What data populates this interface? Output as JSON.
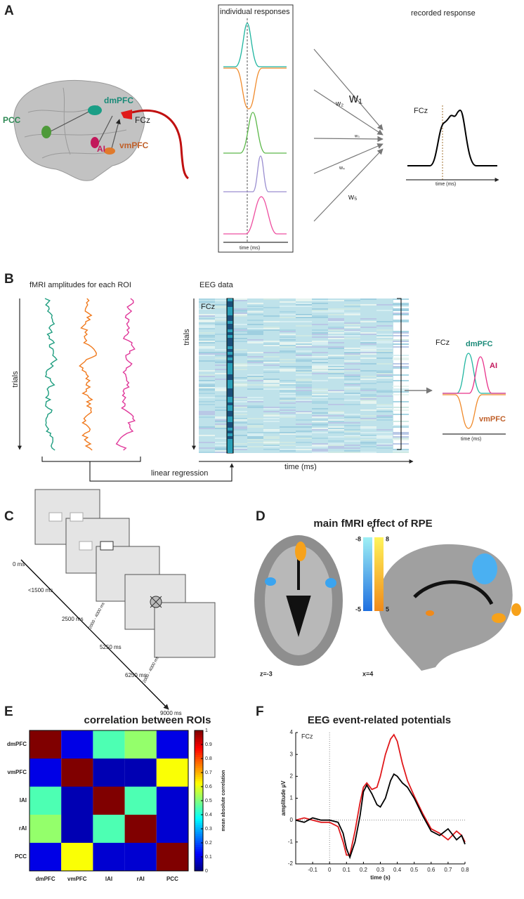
{
  "panel_a": {
    "label": "A",
    "regions": {
      "pcc": "PCC",
      "dmpfc": "dmPFC",
      "ai": "AI",
      "vmpfc": "vmPFC"
    },
    "electrode": "FCz",
    "individual_responses": "individual responses",
    "individual_time": "time (ms)",
    "weights": [
      "w₁",
      "w₂",
      "w₃",
      "w₄",
      "w₅"
    ],
    "recorded_response": "recorded response",
    "recorded_electrode": "FCz",
    "recorded_time": "time (ms)"
  },
  "panel_b": {
    "label": "B",
    "fmri_title": "fMRI amplitudes for each ROI",
    "fmri_trials": "trials",
    "eeg_title": "EEG data",
    "eeg_trials": "trials",
    "eeg_electrode": "FCz",
    "eeg_time": "time (ms)",
    "regression": "linear regression",
    "result_electrode": "FCz",
    "result_dmpfc": "dmPFC",
    "result_ai": "AI",
    "result_vmpfc": "vmPFC",
    "result_time": "time (ms)"
  },
  "panel_c": {
    "label": "C",
    "times": [
      "0 ms",
      "<1500 ms",
      "2500 ms",
      "5250 ms",
      "6250 ms",
      "9000 ms"
    ],
    "jitters": [
      "2000 - 4000 ms",
      "2000 - 4000 ms"
    ]
  },
  "panel_d": {
    "label": "D",
    "title": "main fMRI effect of RPE",
    "colorbar_label": "t",
    "negative": [
      "-8",
      "-5"
    ],
    "positive": [
      "8",
      "5"
    ],
    "slices": [
      "z=-3",
      "x=4"
    ]
  },
  "panel_e_label": "E",
  "panel_f_label": "F",
  "chart_data": [
    {
      "type": "heatmap",
      "title": "correlation between ROIs",
      "colormap": "jet",
      "categories": [
        "dmPFC",
        "vmPFC",
        "lAI",
        "rAI",
        "PCC"
      ],
      "values": [
        [
          1,
          0.1,
          0.45,
          0.52,
          0.1
        ],
        [
          0.1,
          1,
          0.05,
          0.05,
          0.62
        ],
        [
          0.45,
          0.05,
          1,
          0.45,
          0.08
        ],
        [
          0.52,
          0.05,
          0.45,
          1,
          0.08
        ],
        [
          0.1,
          0.62,
          0.08,
          0.08,
          1
        ]
      ],
      "colorbar_label": "mean absolute correlation",
      "clim": [
        0,
        1
      ],
      "cticks": [
        0,
        0.1,
        0.2,
        0.3,
        0.4,
        0.5,
        0.6,
        0.7,
        0.8,
        0.9,
        1
      ]
    },
    {
      "type": "line",
      "title": "EEG event-related potentials",
      "annotation": "FCz",
      "xlabel": "time (s)",
      "ylabel": "amplitude µV",
      "x": [
        -0.2,
        -0.15,
        -0.1,
        -0.05,
        0,
        0.05,
        0.08,
        0.1,
        0.12,
        0.15,
        0.18,
        0.2,
        0.22,
        0.25,
        0.28,
        0.3,
        0.33,
        0.36,
        0.38,
        0.4,
        0.43,
        0.46,
        0.5,
        0.55,
        0.6,
        0.65,
        0.7,
        0.75,
        0.78,
        0.8
      ],
      "series": [
        {
          "color": "#e0181b",
          "values": [
            0,
            0.1,
            0,
            -0.1,
            -0.1,
            -0.3,
            -1.0,
            -1.6,
            -1.6,
            -0.5,
            0.8,
            1.5,
            1.7,
            1.4,
            1.5,
            2.0,
            3.0,
            3.7,
            3.9,
            3.6,
            2.6,
            1.8,
            1.1,
            0.3,
            -0.4,
            -0.6,
            -0.9,
            -0.5,
            -0.7,
            -1.0
          ]
        },
        {
          "color": "#000000",
          "values": [
            0,
            -0.1,
            0.1,
            0,
            0,
            -0.1,
            -0.6,
            -1.3,
            -1.7,
            -1.0,
            0.2,
            1.3,
            1.6,
            1.2,
            0.7,
            0.6,
            1.0,
            1.8,
            2.1,
            2.0,
            1.7,
            1.5,
            1.0,
            0.2,
            -0.5,
            -0.7,
            -0.4,
            -0.9,
            -0.7,
            -1.1
          ]
        }
      ],
      "xlim": [
        -0.2,
        0.8
      ],
      "ylim": [
        -2,
        4
      ],
      "xticks": [
        -0.1,
        0,
        0.1,
        0.2,
        0.3,
        0.4,
        0.5,
        0.6,
        0.7,
        0.8
      ],
      "yticks": [
        -2,
        -1,
        0,
        1,
        2,
        3,
        4
      ],
      "zero_lines": true
    }
  ]
}
